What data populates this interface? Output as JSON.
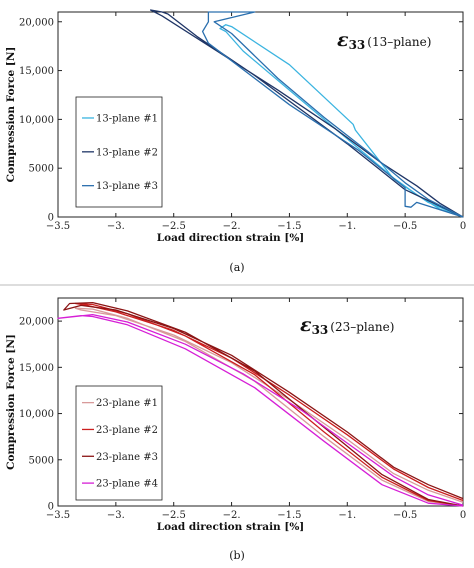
{
  "chart_data": [
    {
      "type": "line",
      "panel_label": "(a)",
      "annotation": {
        "symbol": "ε",
        "subscript": "33",
        "plane": "(13–plane)"
      },
      "xlabel": "Load direction strain [%]",
      "ylabel": "Compression Force [N]",
      "xlim": [
        -3.5,
        0
      ],
      "ylim": [
        0,
        21000
      ],
      "xticks": [
        -3.5,
        -3,
        -2.5,
        -2,
        -1.5,
        -1,
        -0.5,
        0
      ],
      "xtick_labels": [
        "−3.5",
        "−3.",
        "−2.5",
        "−2.",
        "−1.5",
        "−1.",
        "−0.5",
        "0"
      ],
      "yticks": [
        0,
        5000,
        10000,
        15000,
        20000
      ],
      "ytick_labels": [
        "0",
        "5000",
        "10,000",
        "15,000",
        "20,000"
      ],
      "grid": false,
      "legend_position": "left",
      "series": [
        {
          "name": "13-plane #1",
          "color": "#3bb4e0",
          "points": [
            [
              0,
              0
            ],
            [
              -0.3,
              1500
            ],
            [
              -0.6,
              3900
            ],
            [
              -0.93,
              8900
            ],
            [
              -0.95,
              9500
            ],
            [
              -1.5,
              15600
            ],
            [
              -2.0,
              19500
            ],
            [
              -2.05,
              19700
            ],
            [
              -2.1,
              19300
            ],
            [
              -2.05,
              19000
            ],
            [
              -1.9,
              17000
            ],
            [
              -1.5,
              13000
            ],
            [
              -1.0,
              8000
            ],
            [
              -0.6,
              4000
            ],
            [
              -0.4,
              2300
            ],
            [
              -0.2,
              800
            ],
            [
              0,
              0
            ]
          ]
        },
        {
          "name": "13-plane #2",
          "color": "#1f3566",
          "points": [
            [
              0,
              0
            ],
            [
              -0.5,
              2800
            ],
            [
              -1.0,
              7500
            ],
            [
              -1.8,
              14500
            ],
            [
              -2.3,
              18500
            ],
            [
              -2.55,
              20800
            ],
            [
              -2.6,
              21000
            ],
            [
              -2.7,
              21200
            ],
            [
              -2.6,
              20600
            ],
            [
              -2.1,
              16800
            ],
            [
              -1.6,
              13000
            ],
            [
              -1.1,
              9000
            ],
            [
              -0.7,
              5500
            ],
            [
              -0.4,
              3200
            ],
            [
              -0.2,
              1400
            ],
            [
              0,
              0
            ]
          ]
        },
        {
          "name": "13-plane #3",
          "color": "#2a6fae",
          "points": [
            [
              0,
              0
            ],
            [
              -0.4,
              1500
            ],
            [
              -0.45,
              1000
            ],
            [
              -0.5,
              1100
            ],
            [
              -0.5,
              3000
            ],
            [
              -0.9,
              6800
            ],
            [
              -1.5,
              11500
            ],
            [
              -2.2,
              17800
            ],
            [
              -2.25,
              19000
            ],
            [
              -2.2,
              20000
            ],
            [
              -2.2,
              21000
            ],
            [
              -1.8,
              21000
            ],
            [
              -2.15,
              20000
            ],
            [
              -2.0,
              18800
            ],
            [
              -1.6,
              14200
            ],
            [
              -1.2,
              10200
            ],
            [
              -0.8,
              6500
            ],
            [
              -0.5,
              3500
            ],
            [
              -0.3,
              1800
            ],
            [
              0,
              0
            ]
          ]
        }
      ]
    },
    {
      "type": "line",
      "panel_label": "(b)",
      "annotation": {
        "symbol": "ε",
        "subscript": "33",
        "plane": "(23–plane)"
      },
      "xlabel": "Load direction strain [%]",
      "ylabel": "Compression Force [N]",
      "xlim": [
        -3.5,
        0
      ],
      "ylim": [
        0,
        22500
      ],
      "xticks": [
        -3.5,
        -3,
        -2.5,
        -2,
        -1.5,
        -1,
        -0.5,
        0
      ],
      "xtick_labels": [
        "−3.5",
        "−3.",
        "−2.5",
        "−2.",
        "−1.5",
        "−1.",
        "−0.5",
        "0"
      ],
      "yticks": [
        0,
        5000,
        10000,
        15000,
        20000
      ],
      "ytick_labels": [
        "0",
        "5000",
        "10,000",
        "15,000",
        "20,000"
      ],
      "grid": false,
      "legend_position": "left",
      "series": [
        {
          "name": "23-plane #1",
          "color": "#d89a9a",
          "points": [
            [
              0,
              0
            ],
            [
              -0.3,
              500
            ],
            [
              -0.7,
              2800
            ],
            [
              -1.2,
              7500
            ],
            [
              -1.8,
              13500
            ],
            [
              -2.4,
              17800
            ],
            [
              -2.9,
              20300
            ],
            [
              -3.2,
              21300
            ],
            [
              -3.35,
              21400
            ],
            [
              -3.3,
              21200
            ],
            [
              -3.0,
              20600
            ],
            [
              -2.5,
              18500
            ],
            [
              -2.0,
              15500
            ],
            [
              -1.5,
              11500
            ],
            [
              -1.0,
              7200
            ],
            [
              -0.6,
              3500
            ],
            [
              -0.3,
              1700
            ],
            [
              0,
              400
            ]
          ]
        },
        {
          "name": "23-plane #2",
          "color": "#cc1f1f",
          "points": [
            [
              0,
              0
            ],
            [
              -0.3,
              600
            ],
            [
              -0.7,
              3100
            ],
            [
              -1.2,
              8000
            ],
            [
              -1.8,
              14200
            ],
            [
              -2.4,
              18400
            ],
            [
              -2.9,
              20800
            ],
            [
              -3.2,
              21800
            ],
            [
              -3.35,
              21900
            ],
            [
              -3.25,
              21700
            ],
            [
              -3.0,
              21000
            ],
            [
              -2.5,
              19000
            ],
            [
              -2.0,
              16000
            ],
            [
              -1.5,
              12000
            ],
            [
              -1.0,
              7700
            ],
            [
              -0.6,
              4000
            ],
            [
              -0.3,
              2000
            ],
            [
              0,
              600
            ]
          ]
        },
        {
          "name": "23-plane #3",
          "color": "#8b1414",
          "points": [
            [
              0,
              0
            ],
            [
              -0.3,
              700
            ],
            [
              -0.7,
              3400
            ],
            [
              -1.2,
              8500
            ],
            [
              -1.8,
              14600
            ],
            [
              -2.4,
              18800
            ],
            [
              -2.9,
              21100
            ],
            [
              -3.2,
              22000
            ],
            [
              -3.4,
              21900
            ],
            [
              -3.45,
              21200
            ],
            [
              -3.3,
              21700
            ],
            [
              -3.0,
              21200
            ],
            [
              -2.5,
              19200
            ],
            [
              -2.0,
              16300
            ],
            [
              -1.5,
              12300
            ],
            [
              -1.0,
              8000
            ],
            [
              -0.6,
              4200
            ],
            [
              -0.3,
              2300
            ],
            [
              0,
              800
            ]
          ]
        },
        {
          "name": "23-plane #4",
          "color": "#d61fd6",
          "points": [
            [
              0,
              0
            ],
            [
              -0.3,
              300
            ],
            [
              -0.7,
              2300
            ],
            [
              -1.2,
              7000
            ],
            [
              -1.8,
              12800
            ],
            [
              -2.4,
              17000
            ],
            [
              -2.9,
              19600
            ],
            [
              -3.2,
              20500
            ],
            [
              -3.3,
              20600
            ],
            [
              -3.5,
              20300
            ],
            [
              -3.2,
              20700
            ],
            [
              -2.9,
              19900
            ],
            [
              -2.4,
              17500
            ],
            [
              -1.9,
              14300
            ],
            [
              -1.4,
              10400
            ],
            [
              -1.0,
              6800
            ],
            [
              -0.6,
              3200
            ],
            [
              -0.3,
              1200
            ],
            [
              0,
              100
            ]
          ]
        }
      ]
    }
  ]
}
